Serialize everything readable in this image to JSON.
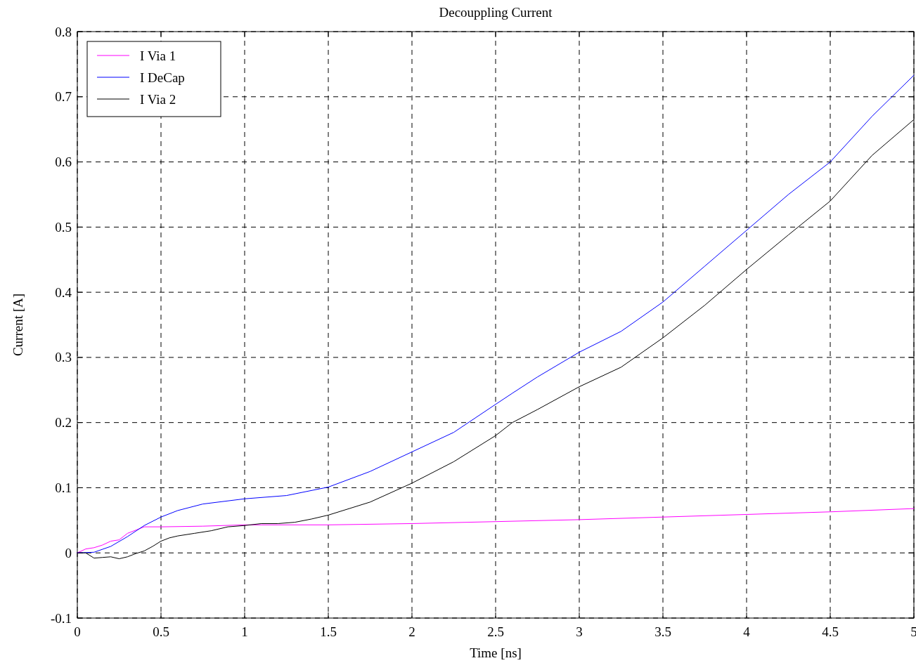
{
  "chart_data": {
    "type": "line",
    "title": "Decouppling Current",
    "xlabel": "Time [ns]",
    "ylabel": "Current [A]",
    "xlim": [
      0,
      5
    ],
    "xticks": [
      0,
      0.5,
      1,
      1.5,
      2,
      2.5,
      3,
      3.5,
      4,
      4.5,
      5
    ],
    "ylim": [
      -0.1,
      0.8
    ],
    "yticks": [
      -0.1,
      0,
      0.1,
      0.2,
      0.3,
      0.4,
      0.5,
      0.6,
      0.7,
      0.8
    ],
    "grid": true,
    "legend": "top left",
    "line_style": "solid",
    "marker": "none",
    "series": [
      {
        "name": "I Via 1",
        "color": "#ff00ff",
        "x": [
          0,
          0.05,
          0.1,
          0.15,
          0.2,
          0.25,
          0.3,
          0.35,
          0.4,
          0.5,
          0.75,
          1,
          1.5,
          2,
          2.5,
          3,
          3.5,
          4,
          4.5,
          5
        ],
        "values": [
          0,
          0.006,
          0.008,
          0.012,
          0.018,
          0.02,
          0.03,
          0.035,
          0.04,
          0.04,
          0.041,
          0.043,
          0.043,
          0.045,
          0.048,
          0.051,
          0.055,
          0.059,
          0.063,
          0.068
        ]
      },
      {
        "name": "I DeCap",
        "color": "#0000ff",
        "x": [
          0,
          0.1,
          0.2,
          0.3,
          0.4,
          0.5,
          0.6,
          0.75,
          1,
          1.25,
          1.5,
          1.75,
          2,
          2.25,
          2.5,
          2.6,
          2.75,
          3,
          3.25,
          3.5,
          3.75,
          4,
          4.25,
          4.5,
          4.75,
          5
        ],
        "values": [
          0,
          0.001,
          0.01,
          0.025,
          0.042,
          0.055,
          0.065,
          0.075,
          0.083,
          0.088,
          0.101,
          0.125,
          0.155,
          0.185,
          0.228,
          0.245,
          0.27,
          0.308,
          0.34,
          0.385,
          0.44,
          0.495,
          0.55,
          0.6,
          0.67,
          0.733
        ]
      },
      {
        "name": "I Via 2",
        "color": "#000000",
        "x": [
          0,
          0.05,
          0.1,
          0.15,
          0.2,
          0.25,
          0.3,
          0.35,
          0.4,
          0.45,
          0.5,
          0.55,
          0.6,
          0.7,
          0.8,
          0.9,
          1,
          1.1,
          1.2,
          1.3,
          1.4,
          1.5,
          1.75,
          2,
          2.25,
          2.5,
          2.6,
          2.75,
          3,
          3.25,
          3.5,
          3.75,
          4,
          4.25,
          4.5,
          4.75,
          5
        ],
        "values": [
          0,
          0,
          -0.008,
          -0.007,
          -0.006,
          -0.009,
          -0.006,
          -0.001,
          0.003,
          0.01,
          0.018,
          0.023,
          0.026,
          0.03,
          0.034,
          0.04,
          0.042,
          0.045,
          0.045,
          0.047,
          0.052,
          0.058,
          0.078,
          0.107,
          0.14,
          0.18,
          0.2,
          0.22,
          0.255,
          0.285,
          0.33,
          0.38,
          0.435,
          0.488,
          0.54,
          0.61,
          0.665
        ]
      }
    ]
  }
}
